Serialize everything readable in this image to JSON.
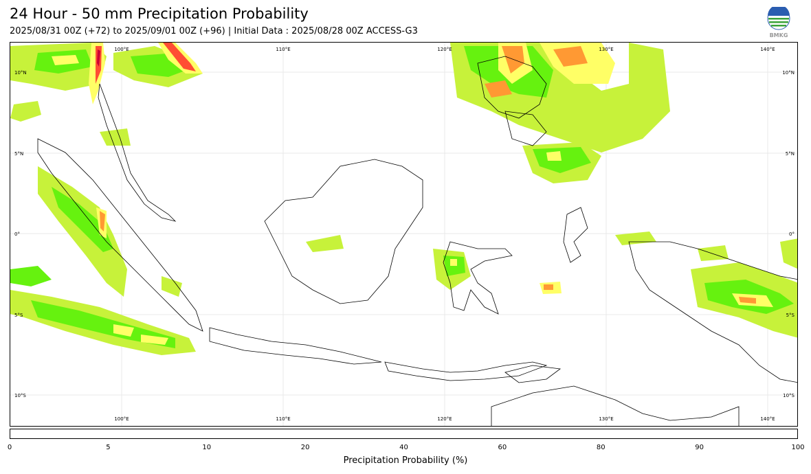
{
  "title": "24 Hour - 50 mm Precipitation Probability",
  "subtitle": "2025/08/31 00Z (+72) to 2025/09/01 00Z (+96) | Initial Data : 2025/08/28 00Z ACCESS-G3",
  "logo": {
    "icon": "bmkg-globe-logo",
    "text": "BMKG"
  },
  "map": {
    "lon_range": [
      93,
      142
    ],
    "lat_range": [
      -12,
      12.5
    ],
    "lon_labels_top": [
      "100°E",
      "110°E",
      "120°E",
      "130°E",
      "140°E"
    ],
    "lon_labels_bottom": [
      "100°E",
      "110°E",
      "120°E",
      "130°E",
      "140°E"
    ],
    "lat_labels_left": [
      "10°N",
      "5°N",
      "0°",
      "5°S",
      "10°S"
    ],
    "lat_labels_right": [
      "10°N",
      "5°N",
      "0°",
      "5°S",
      "10°S"
    ],
    "grid": true
  },
  "colorbar": {
    "label": "Precipitation Probability (%)",
    "ticks": [
      "0",
      "5",
      "10",
      "20",
      "40",
      "60",
      "80",
      "90",
      "100"
    ],
    "colors": [
      "#ffffff",
      "#c7f23a",
      "#66f20f",
      "#ffff66",
      "#ff9933",
      "#ff4d33",
      "#cc0033",
      "#cc0099"
    ]
  }
}
